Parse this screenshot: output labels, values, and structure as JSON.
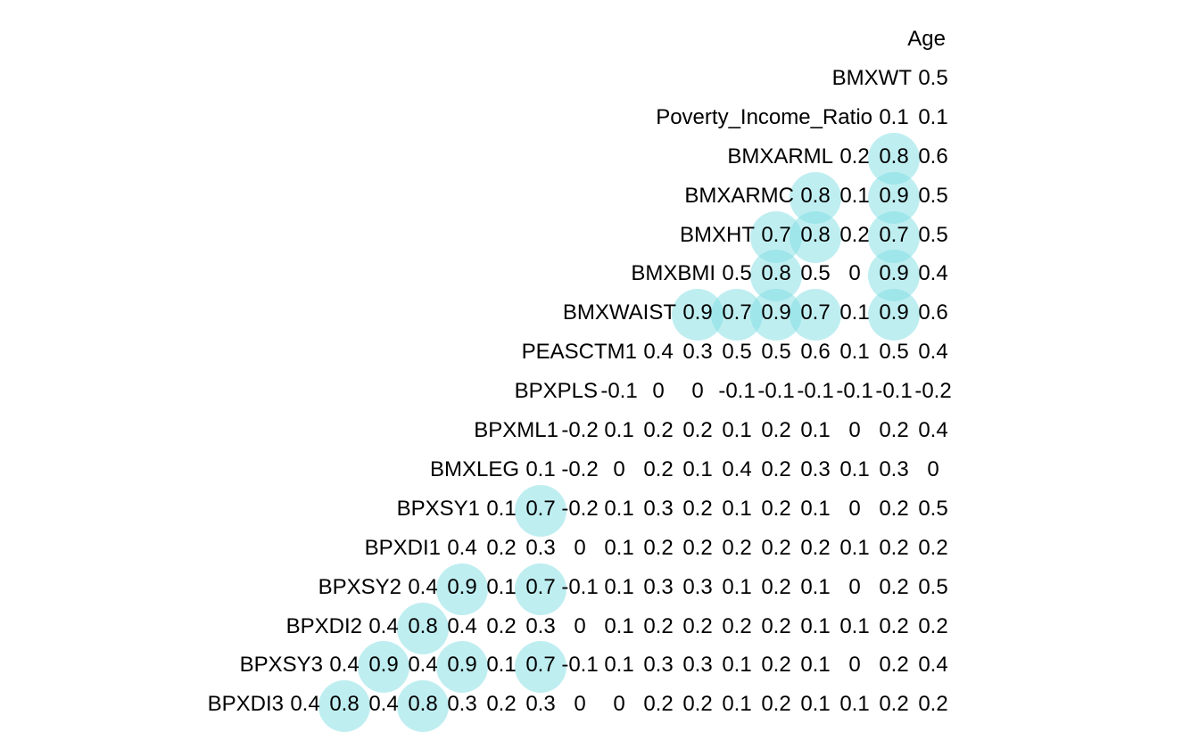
{
  "chart_data": {
    "type": "heatmap",
    "style": "correlation triangle with value labels; circles mark |r| >= 0.7",
    "highlight_color": "#7fdde3",
    "highlight_threshold": 0.7,
    "variables": [
      "Age",
      "BMXWT",
      "Poverty_Income_Ratio",
      "BMXARML",
      "BMXARMC",
      "BMXHT",
      "BMXBMI",
      "BMXWAIST",
      "PEASCTM1",
      "BPXPLS",
      "BPXML1",
      "BMXLEG",
      "BPXSY1",
      "BPXDI1",
      "BPXSY2",
      "BPXDI2",
      "BPXSY3",
      "BPXDI3"
    ],
    "rows_note": "Each row lists the printed values from left to right",
    "rows": [
      [],
      [
        "0.5"
      ],
      [
        "0.1",
        "0.1"
      ],
      [
        "0.2",
        "0.8",
        "0.6"
      ],
      [
        "0.8",
        "0.1",
        "0.9",
        "0.5"
      ],
      [
        "0.7",
        "0.8",
        "0.2",
        "0.7",
        "0.5"
      ],
      [
        "0.5",
        "0.8",
        "0.5",
        "0",
        "0.9",
        "0.4"
      ],
      [
        "0.9",
        "0.7",
        "0.9",
        "0.7",
        "0.1",
        "0.9",
        "0.6"
      ],
      [
        "0.4",
        "0.3",
        "0.5",
        "0.5",
        "0.6",
        "0.1",
        "0.5",
        "0.4"
      ],
      [
        "-0.1",
        "0",
        "0",
        "-0.1",
        "-0.1",
        "-0.1",
        "-0.1",
        "-0.1",
        "-0.2"
      ],
      [
        "-0.2",
        "0.1",
        "0.2",
        "0.2",
        "0.1",
        "0.2",
        "0.1",
        "0",
        "0.2",
        "0.4"
      ],
      [
        "0.1",
        "-0.2",
        "0",
        "0.2",
        "0.1",
        "0.4",
        "0.2",
        "0.3",
        "0.1",
        "0.3",
        "0"
      ],
      [
        "0.1",
        "0.7",
        "-0.2",
        "0.1",
        "0.3",
        "0.2",
        "0.1",
        "0.2",
        "0.1",
        "0",
        "0.2",
        "0.5"
      ],
      [
        "0.4",
        "0.2",
        "0.3",
        "0",
        "0.1",
        "0.2",
        "0.2",
        "0.2",
        "0.2",
        "0.2",
        "0.1",
        "0.2",
        "0.2"
      ],
      [
        "0.4",
        "0.9",
        "0.1",
        "0.7",
        "-0.1",
        "0.1",
        "0.3",
        "0.3",
        "0.1",
        "0.2",
        "0.1",
        "0",
        "0.2",
        "0.5"
      ],
      [
        "0.4",
        "0.8",
        "0.4",
        "0.2",
        "0.3",
        "0",
        "0.1",
        "0.2",
        "0.2",
        "0.2",
        "0.2",
        "0.1",
        "0.1",
        "0.2",
        "0.2"
      ],
      [
        "0.4",
        "0.9",
        "0.4",
        "0.9",
        "0.1",
        "0.7",
        "-0.1",
        "0.1",
        "0.3",
        "0.3",
        "0.1",
        "0.2",
        "0.1",
        "0",
        "0.2",
        "0.4"
      ],
      [
        "0.4",
        "0.8",
        "0.4",
        "0.8",
        "0.3",
        "0.2",
        "0.3",
        "0",
        "0",
        "0.2",
        "0.2",
        "0.1",
        "0.2",
        "0.1",
        "0.1",
        "0.2",
        "0.2"
      ]
    ]
  }
}
